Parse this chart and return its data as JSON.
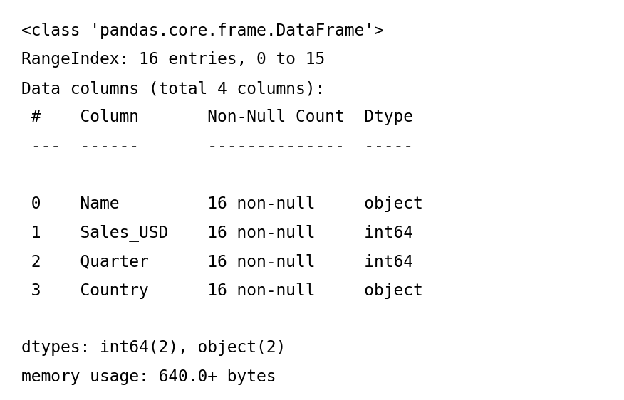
{
  "background_color": "#ffffff",
  "text_color": "#000000",
  "font_family": "monospace",
  "font_size": 16.5,
  "lines": [
    "<class 'pandas.core.frame.DataFrame'>",
    "RangeIndex: 16 entries, 0 to 15",
    "Data columns (total 4 columns):",
    " #    Column       Non-Null Count  Dtype",
    " ---  ------       --------------  -----",
    "",
    " 0    Name         16 non-null     object",
    " 1    Sales_USD    16 non-null     int64",
    " 2    Quarter      16 non-null     int64",
    " 3    Country      16 non-null     object",
    "",
    "dtypes: int64(2), object(2)",
    "memory usage: 640.0+ bytes"
  ],
  "figsize": [
    8.76,
    5.62
  ],
  "dpi": 100
}
